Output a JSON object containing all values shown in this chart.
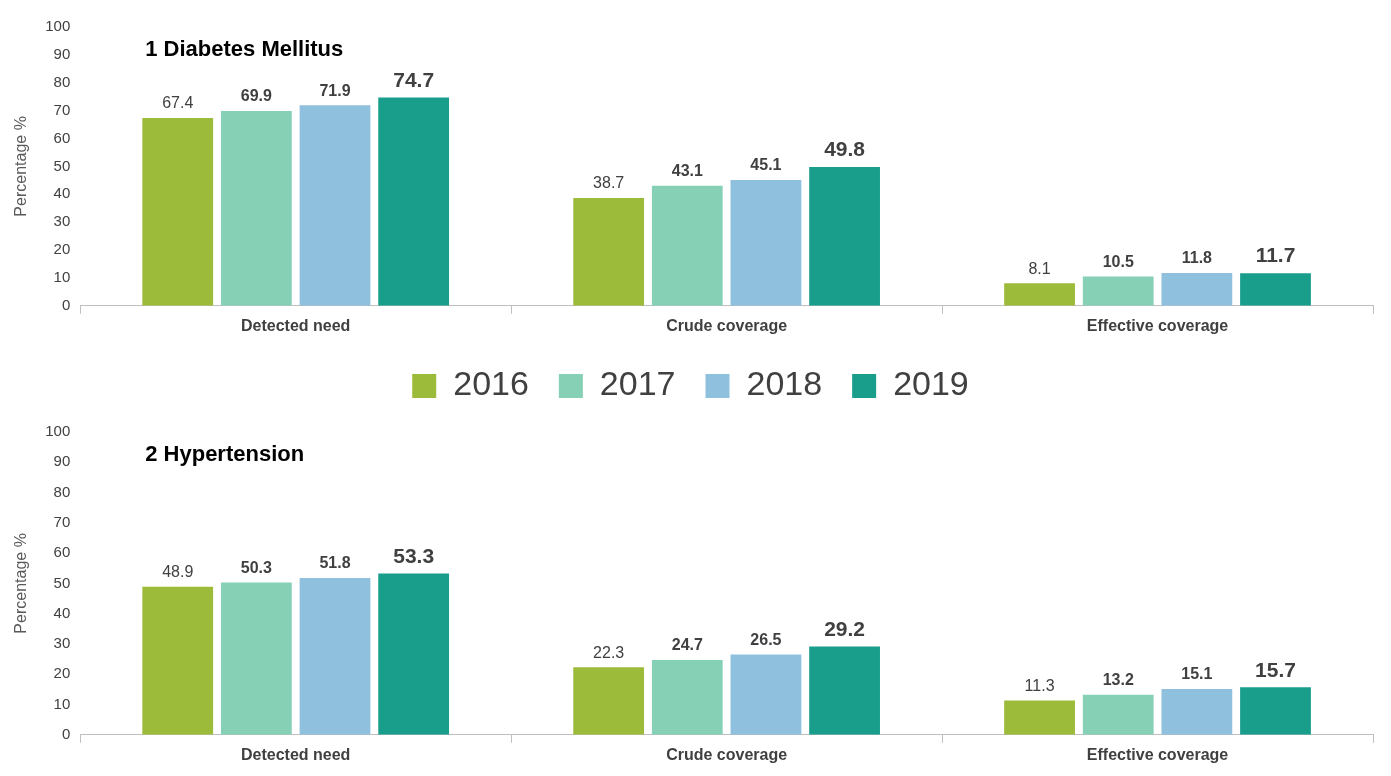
{
  "chart_data": [
    {
      "type": "bar",
      "title": "1 Diabetes Mellitus",
      "ylabel": "Percentage %",
      "categories": [
        "Detected need",
        "Crude coverage",
        "Effective coverage"
      ],
      "series": [
        {
          "name": "2016",
          "color": "#9dbb3a",
          "values": [
            67.4,
            38.7,
            8.1
          ]
        },
        {
          "name": "2017",
          "color": "#86d0b6",
          "values": [
            69.9,
            43.1,
            10.5
          ]
        },
        {
          "name": "2018",
          "color": "#8fc0dd",
          "values": [
            71.9,
            45.1,
            11.8
          ]
        },
        {
          "name": "2019",
          "color": "#1a9e8c",
          "values": [
            74.7,
            49.8,
            11.7
          ]
        }
      ],
      "ylim": [
        0,
        100
      ],
      "yticks": [
        0,
        10,
        20,
        30,
        40,
        50,
        60,
        70,
        80,
        90,
        100
      ],
      "grid": false,
      "legend": "bottom",
      "data_labels": true
    },
    {
      "type": "bar",
      "title": "2 Hypertension",
      "ylabel": "Percentage %",
      "categories": [
        "Detected need",
        "Crude coverage",
        "Effective coverage"
      ],
      "series": [
        {
          "color": "#9dbb3a",
          "values": [
            48.9,
            22.3,
            11.3
          ]
        },
        {
          "color": "#86d0b6",
          "values": [
            50.3,
            24.7,
            13.2
          ]
        },
        {
          "color": "#8fc0dd",
          "values": [
            51.8,
            26.5,
            15.1
          ]
        },
        {
          "color": "#1a9e8c",
          "values": [
            53.3,
            29.2,
            15.7
          ]
        }
      ],
      "ylim": [
        0,
        100
      ],
      "yticks": [
        0,
        10,
        20,
        30,
        40,
        50,
        60,
        70,
        80,
        90,
        100
      ],
      "grid": false,
      "legend": false,
      "data_labels": true
    }
  ]
}
